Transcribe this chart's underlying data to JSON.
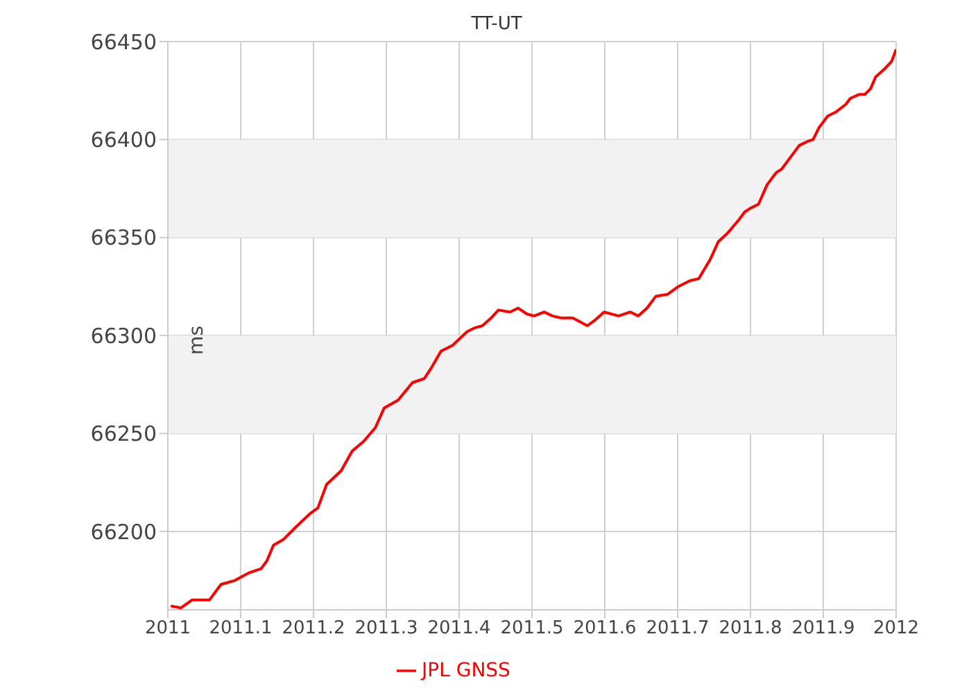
{
  "chart_data": {
    "type": "line",
    "title": "TT-UT",
    "ylabel": "ms",
    "xlim": [
      2011,
      2012
    ],
    "xticks": [
      2011,
      2011.1,
      2011.2,
      2011.3,
      2011.4,
      2011.5,
      2011.6,
      2011.7,
      2011.8,
      2011.9,
      2012
    ],
    "ylim": [
      66160,
      66450
    ],
    "yticks": [
      66200,
      66250,
      66300,
      66350,
      66400,
      66450
    ],
    "grid": true,
    "legend": "bottom",
    "marker": "none",
    "line_style": "solid",
    "bands": [
      {
        "axis": "y",
        "from": 66250,
        "to": 66300,
        "color": "#f2f2f2"
      },
      {
        "axis": "y",
        "from": 66350,
        "to": 66400,
        "color": "#f2f2f2"
      }
    ],
    "series": [
      {
        "name": "JPL GNSS",
        "color": "#ff0000",
        "x": [
          2011.004,
          2011.018,
          2011.033,
          2011.057,
          2011.073,
          2011.092,
          2011.112,
          2011.128,
          2011.136,
          2011.145,
          2011.159,
          2011.175,
          2011.195,
          2011.206,
          2011.218,
          2011.238,
          2011.253,
          2011.269,
          2011.285,
          2011.297,
          2011.316,
          2011.336,
          2011.352,
          2011.361,
          2011.375,
          2011.391,
          2011.411,
          2011.422,
          2011.432,
          2011.444,
          2011.454,
          2011.47,
          2011.481,
          2011.493,
          2011.503,
          2011.517,
          2011.528,
          2011.54,
          2011.556,
          2011.576,
          2011.587,
          2011.599,
          2011.619,
          2011.635,
          2011.646,
          2011.658,
          2011.67,
          2011.686,
          2011.701,
          2011.717,
          2011.729,
          2011.745,
          2011.756,
          2011.768,
          2011.784,
          2011.792,
          2011.8,
          2011.811,
          2011.823,
          2011.835,
          2011.843,
          2011.855,
          2011.867,
          2011.878,
          2011.886,
          2011.894,
          2011.906,
          2011.917,
          2011.931,
          2011.937,
          2011.949,
          2011.957,
          2011.965,
          2011.972,
          2011.984,
          2011.994,
          2012.0
        ],
        "values": [
          66162,
          66161,
          66165,
          66165,
          66173,
          66175,
          66179,
          66181,
          66185,
          66193,
          66196,
          66202,
          66209,
          66212,
          66224,
          66231,
          66241,
          66246,
          66253,
          66263,
          66267,
          66276,
          66278,
          66283,
          66292,
          66295,
          66302,
          66304,
          66305,
          66309,
          66313,
          66312,
          66314,
          66311,
          66310,
          66312,
          66310,
          66309,
          66309,
          66305,
          66308,
          66312,
          66310,
          66312,
          66310,
          66314,
          66320,
          66321,
          66325,
          66328,
          66329,
          66339,
          66348,
          66352,
          66359,
          66363,
          66365,
          66367,
          66377,
          66383,
          66385,
          66391,
          66397,
          66399,
          66400,
          66406,
          66412,
          66414,
          66418,
          66421,
          66423,
          66423,
          66426,
          66432,
          66436,
          66440,
          66446
        ]
      }
    ]
  }
}
